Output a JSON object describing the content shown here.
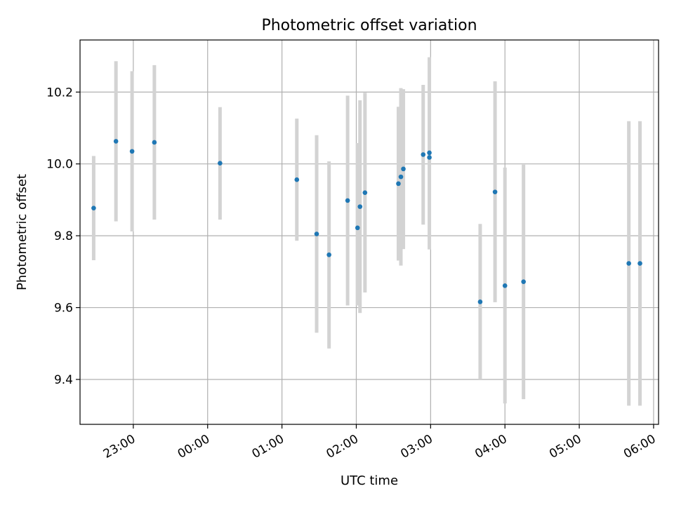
{
  "chart_data": {
    "type": "scatter",
    "title": "Photometric offset variation",
    "xlabel": "UTC time",
    "ylabel": "Photometric offset",
    "x_ticks": [
      "23:00",
      "00:00",
      "01:00",
      "02:00",
      "03:00",
      "04:00",
      "05:00",
      "06:00"
    ],
    "y_ticks": [
      "9.4",
      "9.6",
      "9.8",
      "10.0",
      "10.2"
    ],
    "y_tick_values": [
      9.4,
      9.6,
      9.8,
      10.0,
      10.2
    ],
    "ylim": [
      9.275,
      10.345
    ],
    "xlim": [
      "22:17",
      "06:04"
    ],
    "grid": true,
    "x_tick_rotation": 30,
    "colors": {
      "points": "#1f77b4",
      "errorbars": "#d3d3d3",
      "grid": "#b0b0b0"
    },
    "points": [
      {
        "x": "22:28",
        "y": 9.877,
        "low": 9.732,
        "high": 10.022
      },
      {
        "x": "22:46",
        "y": 10.063,
        "low": 9.84,
        "high": 10.286
      },
      {
        "x": "22:59",
        "y": 10.035,
        "low": 9.812,
        "high": 10.258
      },
      {
        "x": "23:17",
        "y": 10.06,
        "low": 9.845,
        "high": 10.275
      },
      {
        "x": "00:10",
        "y": 10.002,
        "low": 9.845,
        "high": 10.158
      },
      {
        "x": "01:12",
        "y": 9.956,
        "low": 9.786,
        "high": 10.126
      },
      {
        "x": "01:28",
        "y": 9.805,
        "low": 9.53,
        "high": 10.08
      },
      {
        "x": "01:38",
        "y": 9.747,
        "low": 9.486,
        "high": 10.007
      },
      {
        "x": "01:53",
        "y": 9.898,
        "low": 9.606,
        "high": 10.19
      },
      {
        "x": "02:01",
        "y": 9.822,
        "low": 9.606,
        "high": 10.058
      },
      {
        "x": "02:03",
        "y": 9.881,
        "low": 9.585,
        "high": 10.177
      },
      {
        "x": "02:07",
        "y": 9.92,
        "low": 9.642,
        "high": 10.198
      },
      {
        "x": "02:34",
        "y": 9.945,
        "low": 9.731,
        "high": 10.159
      },
      {
        "x": "02:36",
        "y": 9.964,
        "low": 9.717,
        "high": 10.211
      },
      {
        "x": "02:38",
        "y": 9.986,
        "low": 9.763,
        "high": 10.208
      },
      {
        "x": "02:54",
        "y": 10.026,
        "low": 9.831,
        "high": 10.22
      },
      {
        "x": "02:59",
        "y": 10.018,
        "low": 9.762,
        "high": 10.297
      },
      {
        "x": "03:40",
        "y": 9.616,
        "low": 9.4,
        "high": 9.833
      },
      {
        "x": "03:52",
        "y": 9.922,
        "low": 9.615,
        "high": 10.23
      },
      {
        "x": "04:00",
        "y": 9.661,
        "low": 9.333,
        "high": 9.99
      },
      {
        "x": "04:15",
        "y": 9.672,
        "low": 9.345,
        "high": 9.998
      },
      {
        "x": "05:40",
        "y": 9.723,
        "low": 9.327,
        "high": 10.119
      },
      {
        "x": "05:49",
        "y": 9.723,
        "low": 9.327,
        "high": 10.119
      }
    ],
    "extra_points": [
      {
        "x": "02:59",
        "y": 10.031
      }
    ]
  }
}
